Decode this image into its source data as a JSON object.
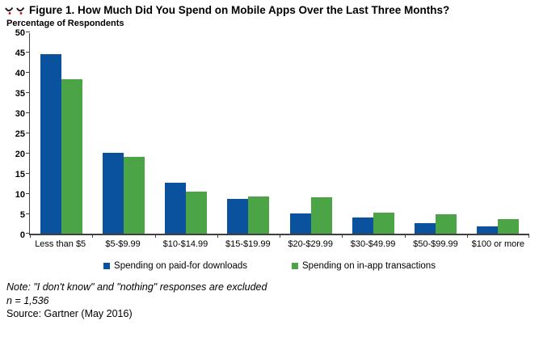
{
  "title": "Figure 1. How Much Did You Spend on Mobile Apps Over the Last Three Months?",
  "subtitle": "Percentage of Respondents",
  "chart_data": {
    "type": "bar",
    "categories": [
      "Less than $5",
      "$5-$9.99",
      "$10-$14.99",
      "$15-$19.99",
      "$20-$29.99",
      "$30-$49.99",
      "$50-$99.99",
      "$100 or more"
    ],
    "series": [
      {
        "name": "Spending on paid-for downloads",
        "color": "#0B529E",
        "values": [
          44.5,
          20.1,
          12.6,
          8.7,
          5.0,
          4.0,
          2.7,
          1.8
        ]
      },
      {
        "name": "Spending on in-app transactions",
        "color": "#4BA445",
        "values": [
          38.2,
          19.1,
          10.5,
          9.2,
          9.0,
          5.3,
          4.8,
          3.6
        ]
      }
    ],
    "title": "Figure 1. How Much Did You Spend on Mobile Apps Over the Last Three Months?",
    "xlabel": "",
    "ylabel": "Percentage of Respondents",
    "ylim": [
      0,
      50
    ],
    "ytick_step": 5,
    "grid": false,
    "legend_position": "bottom"
  },
  "icons": {
    "broken_image": "broken-image-icon"
  },
  "colors": {
    "axis": "#404040",
    "paid_downloads": "#0B529E",
    "in_app": "#4BA445"
  },
  "notes": {
    "note": "Note: \"I don't know\" and \"nothing\" responses are excluded",
    "sample": "n = 1,536",
    "source": "Source: Gartner (May 2016)"
  }
}
